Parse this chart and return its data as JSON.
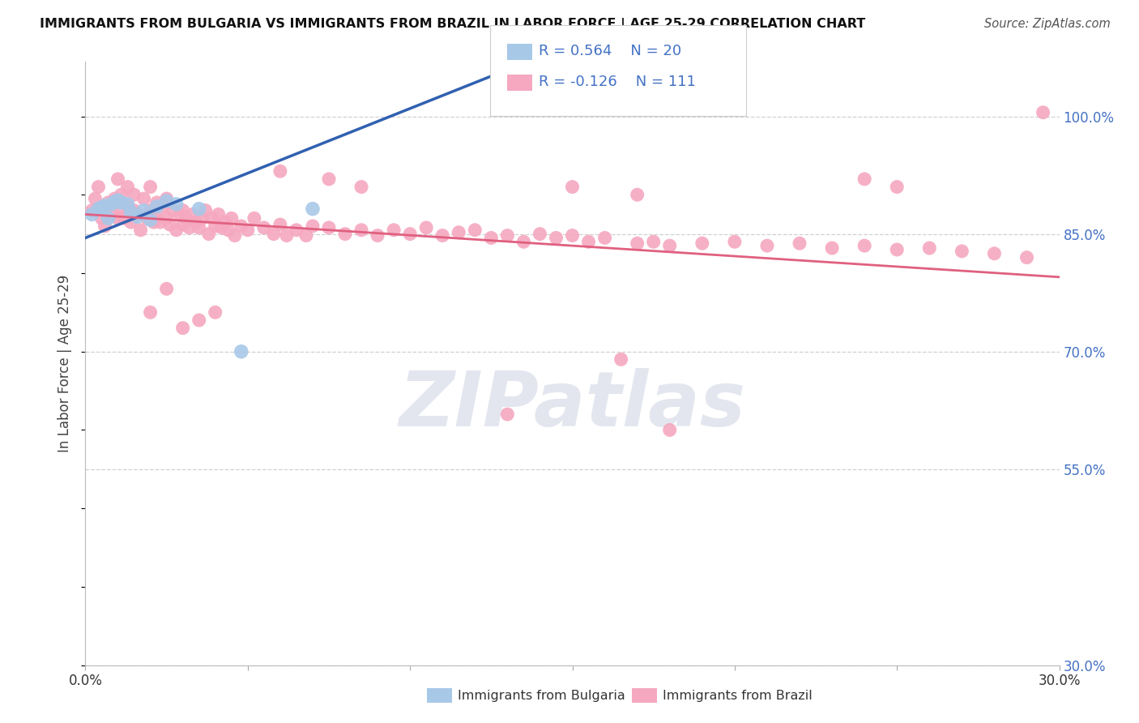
{
  "title": "IMMIGRANTS FROM BULGARIA VS IMMIGRANTS FROM BRAZIL IN LABOR FORCE | AGE 25-29 CORRELATION CHART",
  "source": "Source: ZipAtlas.com",
  "ylabel": "In Labor Force | Age 25-29",
  "xlim": [
    0.0,
    0.3
  ],
  "ylim": [
    0.3,
    1.07
  ],
  "ytick_vals": [
    1.0,
    0.85,
    0.7,
    0.55,
    0.3
  ],
  "ytick_labels": [
    "100.0%",
    "85.0%",
    "70.0%",
    "55.0%",
    "30.0%"
  ],
  "xtick_vals": [
    0.0,
    0.05,
    0.1,
    0.15,
    0.2,
    0.25,
    0.3
  ],
  "xtick_labels": [
    "0.0%",
    "",
    "",
    "",
    "",
    "",
    "30.0%"
  ],
  "bulgaria_color": "#a8c8e8",
  "brazil_color": "#f5a8c0",
  "bulgaria_line_color": "#3060b0",
  "brazil_line_color": "#e06080",
  "legend_R_bulgaria": "0.564",
  "legend_N_bulgaria": "20",
  "legend_R_brazil": "-0.126",
  "legend_N_brazil": "111",
  "legend_blue": "#4472c4",
  "watermark_text": "ZIPatlas",
  "bg_color": "#ffffff",
  "grid_color": "#d0d0d0",
  "bulgaria_x": [
    0.002,
    0.004,
    0.005,
    0.006,
    0.007,
    0.008,
    0.009,
    0.01,
    0.011,
    0.013,
    0.014,
    0.016,
    0.018,
    0.02,
    0.022,
    0.025,
    0.028,
    0.035,
    0.048,
    0.07
  ],
  "bulgaria_y": [
    0.875,
    0.882,
    0.884,
    0.886,
    0.87,
    0.888,
    0.891,
    0.893,
    0.89,
    0.888,
    0.878,
    0.872,
    0.88,
    0.868,
    0.885,
    0.892,
    0.888,
    0.882,
    0.7,
    0.882
  ],
  "brazil_x": [
    0.002,
    0.003,
    0.004,
    0.005,
    0.006,
    0.007,
    0.008,
    0.009,
    0.01,
    0.01,
    0.011,
    0.011,
    0.012,
    0.013,
    0.013,
    0.014,
    0.015,
    0.015,
    0.016,
    0.017,
    0.018,
    0.019,
    0.02,
    0.02,
    0.021,
    0.022,
    0.022,
    0.023,
    0.024,
    0.025,
    0.025,
    0.026,
    0.027,
    0.028,
    0.029,
    0.03,
    0.03,
    0.031,
    0.032,
    0.033,
    0.034,
    0.035,
    0.036,
    0.037,
    0.038,
    0.039,
    0.04,
    0.041,
    0.042,
    0.043,
    0.044,
    0.045,
    0.046,
    0.048,
    0.05,
    0.052,
    0.055,
    0.058,
    0.06,
    0.062,
    0.065,
    0.068,
    0.07,
    0.075,
    0.08,
    0.085,
    0.09,
    0.095,
    0.1,
    0.105,
    0.11,
    0.115,
    0.12,
    0.125,
    0.13,
    0.135,
    0.14,
    0.145,
    0.15,
    0.155,
    0.16,
    0.17,
    0.175,
    0.18,
    0.19,
    0.2,
    0.21,
    0.22,
    0.23,
    0.24,
    0.25,
    0.26,
    0.27,
    0.28,
    0.29,
    0.295,
    0.06,
    0.075,
    0.085,
    0.15,
    0.17,
    0.24,
    0.25,
    0.02,
    0.025,
    0.03,
    0.035,
    0.04,
    0.13,
    0.165,
    0.18
  ],
  "brazil_y": [
    0.88,
    0.895,
    0.91,
    0.87,
    0.86,
    0.89,
    0.875,
    0.895,
    0.87,
    0.92,
    0.88,
    0.9,
    0.87,
    0.885,
    0.91,
    0.865,
    0.88,
    0.9,
    0.875,
    0.855,
    0.895,
    0.87,
    0.88,
    0.91,
    0.865,
    0.87,
    0.89,
    0.865,
    0.885,
    0.87,
    0.895,
    0.862,
    0.88,
    0.855,
    0.875,
    0.862,
    0.88,
    0.87,
    0.858,
    0.875,
    0.865,
    0.858,
    0.87,
    0.88,
    0.85,
    0.87,
    0.86,
    0.875,
    0.858,
    0.865,
    0.855,
    0.87,
    0.848,
    0.86,
    0.855,
    0.87,
    0.858,
    0.85,
    0.862,
    0.848,
    0.855,
    0.848,
    0.86,
    0.858,
    0.85,
    0.855,
    0.848,
    0.855,
    0.85,
    0.858,
    0.848,
    0.852,
    0.855,
    0.845,
    0.848,
    0.84,
    0.85,
    0.845,
    0.848,
    0.84,
    0.845,
    0.838,
    0.84,
    0.835,
    0.838,
    0.84,
    0.835,
    0.838,
    0.832,
    0.835,
    0.83,
    0.832,
    0.828,
    0.825,
    0.82,
    1.005,
    0.93,
    0.92,
    0.91,
    0.91,
    0.9,
    0.92,
    0.91,
    0.75,
    0.78,
    0.73,
    0.74,
    0.75,
    0.62,
    0.69,
    0.6
  ]
}
